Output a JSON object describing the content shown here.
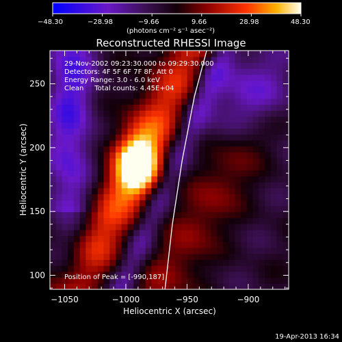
{
  "chart_data": {
    "type": "heatmap",
    "title": "Reconstructed RHESSI Image",
    "xlabel": "Heliocentric X (arcsec)",
    "ylabel": "Heliocentric Y (arcsec)",
    "xlim": [
      -1062,
      -867
    ],
    "ylim": [
      89,
      276
    ],
    "x_ticks": [
      -1050,
      -1000,
      -950,
      -900
    ],
    "x_tick_labels": [
      "−1050",
      "−1000",
      "−950",
      "−900"
    ],
    "y_ticks": [
      100,
      150,
      200,
      250
    ],
    "y_tick_labels": [
      "100",
      "150",
      "200",
      "250"
    ],
    "colorbar": {
      "min": -48.3,
      "max": 48.3,
      "tick_labels": [
        "−48.30",
        "−28.98",
        "−9.66",
        "9.66",
        "28.98",
        "48.30"
      ],
      "tick_values": [
        -48.3,
        -28.98,
        -9.66,
        9.66,
        28.98,
        48.3
      ],
      "unit_label": "(photons cm⁻² s⁻¹ asec⁻²)"
    },
    "info_lines": [
      "29-Nov-2002 09:23:30.000 to 09:29:30.000",
      "Detectors: 4F 5F 6F 7F 8F, Att 0",
      "Energy Range: 3.0 - 6.0 keV",
      "Clean     Total counts: 4.45E+04"
    ],
    "peak_label": "Position of Peak = [-990,187]",
    "peak": {
      "x": -990,
      "y": 187,
      "value": 48.3
    },
    "limb_line": [
      [
        -968,
        89
      ],
      [
        -962,
        140
      ],
      [
        -954,
        190
      ],
      [
        -944,
        240
      ],
      [
        -934,
        276
      ]
    ],
    "grid": false,
    "legend": "none"
  },
  "footer_date": "19-Apr-2013 16:34",
  "colors": {
    "background": "#000000",
    "axes": "#ffffff",
    "colormap": [
      "#0000ff",
      "#5a10b0",
      "#3c1060",
      "#1a0010",
      "#a00000",
      "#ff4400",
      "#ffc000",
      "#ffffff"
    ]
  }
}
